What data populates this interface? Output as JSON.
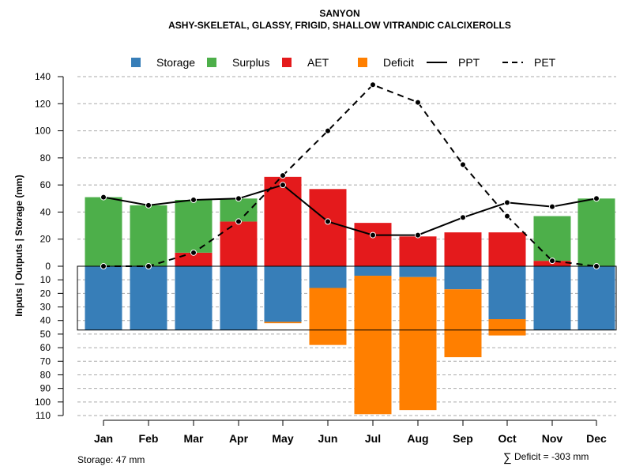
{
  "chart_data": {
    "type": "bar",
    "title": "SANYON",
    "subtitle": "ASHY-SKELETAL, GLASSY, FRIGID, SHALLOW VITRANDIC CALCIXEROLLS",
    "ylabel": "Inputs | Outputs | Storage    (mm)",
    "categories": [
      "Jan",
      "Feb",
      "Mar",
      "Apr",
      "May",
      "Jun",
      "Jul",
      "Aug",
      "Sep",
      "Oct",
      "Nov",
      "Dec"
    ],
    "upper_ticks": [
      "0",
      "20",
      "40",
      "60",
      "80",
      "100",
      "120",
      "140"
    ],
    "lower_ticks": [
      "10",
      "20",
      "30",
      "40",
      "50",
      "60",
      "70",
      "80",
      "90",
      "100",
      "110"
    ],
    "legend": {
      "storage": "Storage",
      "surplus": "Surplus",
      "aet": "AET",
      "deficit": "Deficit",
      "ppt": "PPT",
      "pet": "PET"
    },
    "colors": {
      "storage": "#377eb8",
      "surplus": "#4daf4a",
      "aet": "#e41a1c",
      "deficit": "#ff7f00",
      "lines": "#000000"
    },
    "series": [
      {
        "name": "AET",
        "values": [
          0,
          0,
          10,
          33,
          66,
          57,
          32,
          22,
          25,
          25,
          4,
          0
        ]
      },
      {
        "name": "Surplus",
        "values": [
          51,
          45,
          39,
          17,
          0,
          0,
          0,
          0,
          0,
          0,
          33,
          50
        ]
      },
      {
        "name": "Storage",
        "values": [
          47,
          47,
          47,
          47,
          41,
          16,
          7,
          8,
          17,
          39,
          47,
          47
        ]
      },
      {
        "name": "Deficit",
        "values": [
          0,
          0,
          0,
          0,
          1,
          42,
          102,
          98,
          50,
          12,
          0,
          0
        ]
      },
      {
        "name": "PPT",
        "values": [
          51,
          45,
          49,
          50,
          60,
          33,
          23,
          23,
          36,
          47,
          44,
          50
        ]
      },
      {
        "name": "PET",
        "values": [
          0,
          0,
          10,
          33,
          67,
          100,
          134,
          121,
          75,
          37,
          4,
          0
        ]
      }
    ],
    "storage_capacity": 47,
    "ylim_upper": [
      0,
      140
    ],
    "ylim_lower": [
      0,
      110
    ]
  },
  "footer": {
    "storage_note": "Storage: 47 mm",
    "deficit_symbol": "∑",
    "deficit_note": "Deficit = -303 mm"
  }
}
